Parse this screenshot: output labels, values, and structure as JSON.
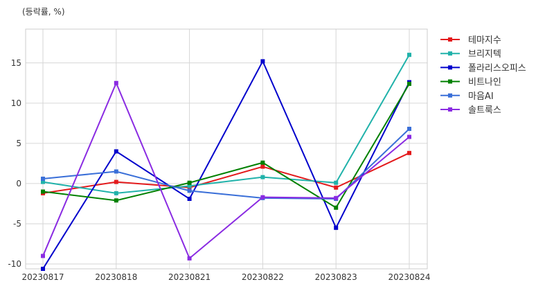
{
  "chart_data": {
    "type": "line",
    "unit_label": "(등락률, %)",
    "categories": [
      "20230817",
      "20230818",
      "20230821",
      "20230822",
      "20230823",
      "20230824"
    ],
    "ylim": [
      -10.6,
      19.2
    ],
    "yticks": [
      -10,
      -5,
      0,
      5,
      10,
      15
    ],
    "grid": true,
    "legend_position": "outside-right-top",
    "series": [
      {
        "name": "테마지수",
        "color": "#e31a1c",
        "values": [
          -1.2,
          0.2,
          -0.5,
          2.1,
          -0.5,
          3.8
        ]
      },
      {
        "name": "브리지텍",
        "color": "#20b2aa",
        "values": [
          0.2,
          -1.2,
          -0.3,
          0.8,
          0.1,
          16.0
        ]
      },
      {
        "name": "폴라리스오피스",
        "color": "#0000cc",
        "values": [
          -10.6,
          4.0,
          -1.9,
          15.2,
          -5.5,
          12.6
        ]
      },
      {
        "name": "비트나인",
        "color": "#008000",
        "values": [
          -1.0,
          -2.1,
          0.1,
          2.6,
          -3.0,
          12.4
        ]
      },
      {
        "name": "마음AI",
        "color": "#3a6fd8",
        "values": [
          0.6,
          1.5,
          -0.9,
          -1.8,
          -1.9,
          6.8
        ]
      },
      {
        "name": "솔트룩스",
        "color": "#8a2be2",
        "values": [
          -9.0,
          12.5,
          -9.3,
          -1.7,
          -1.8,
          5.8
        ]
      }
    ]
  }
}
